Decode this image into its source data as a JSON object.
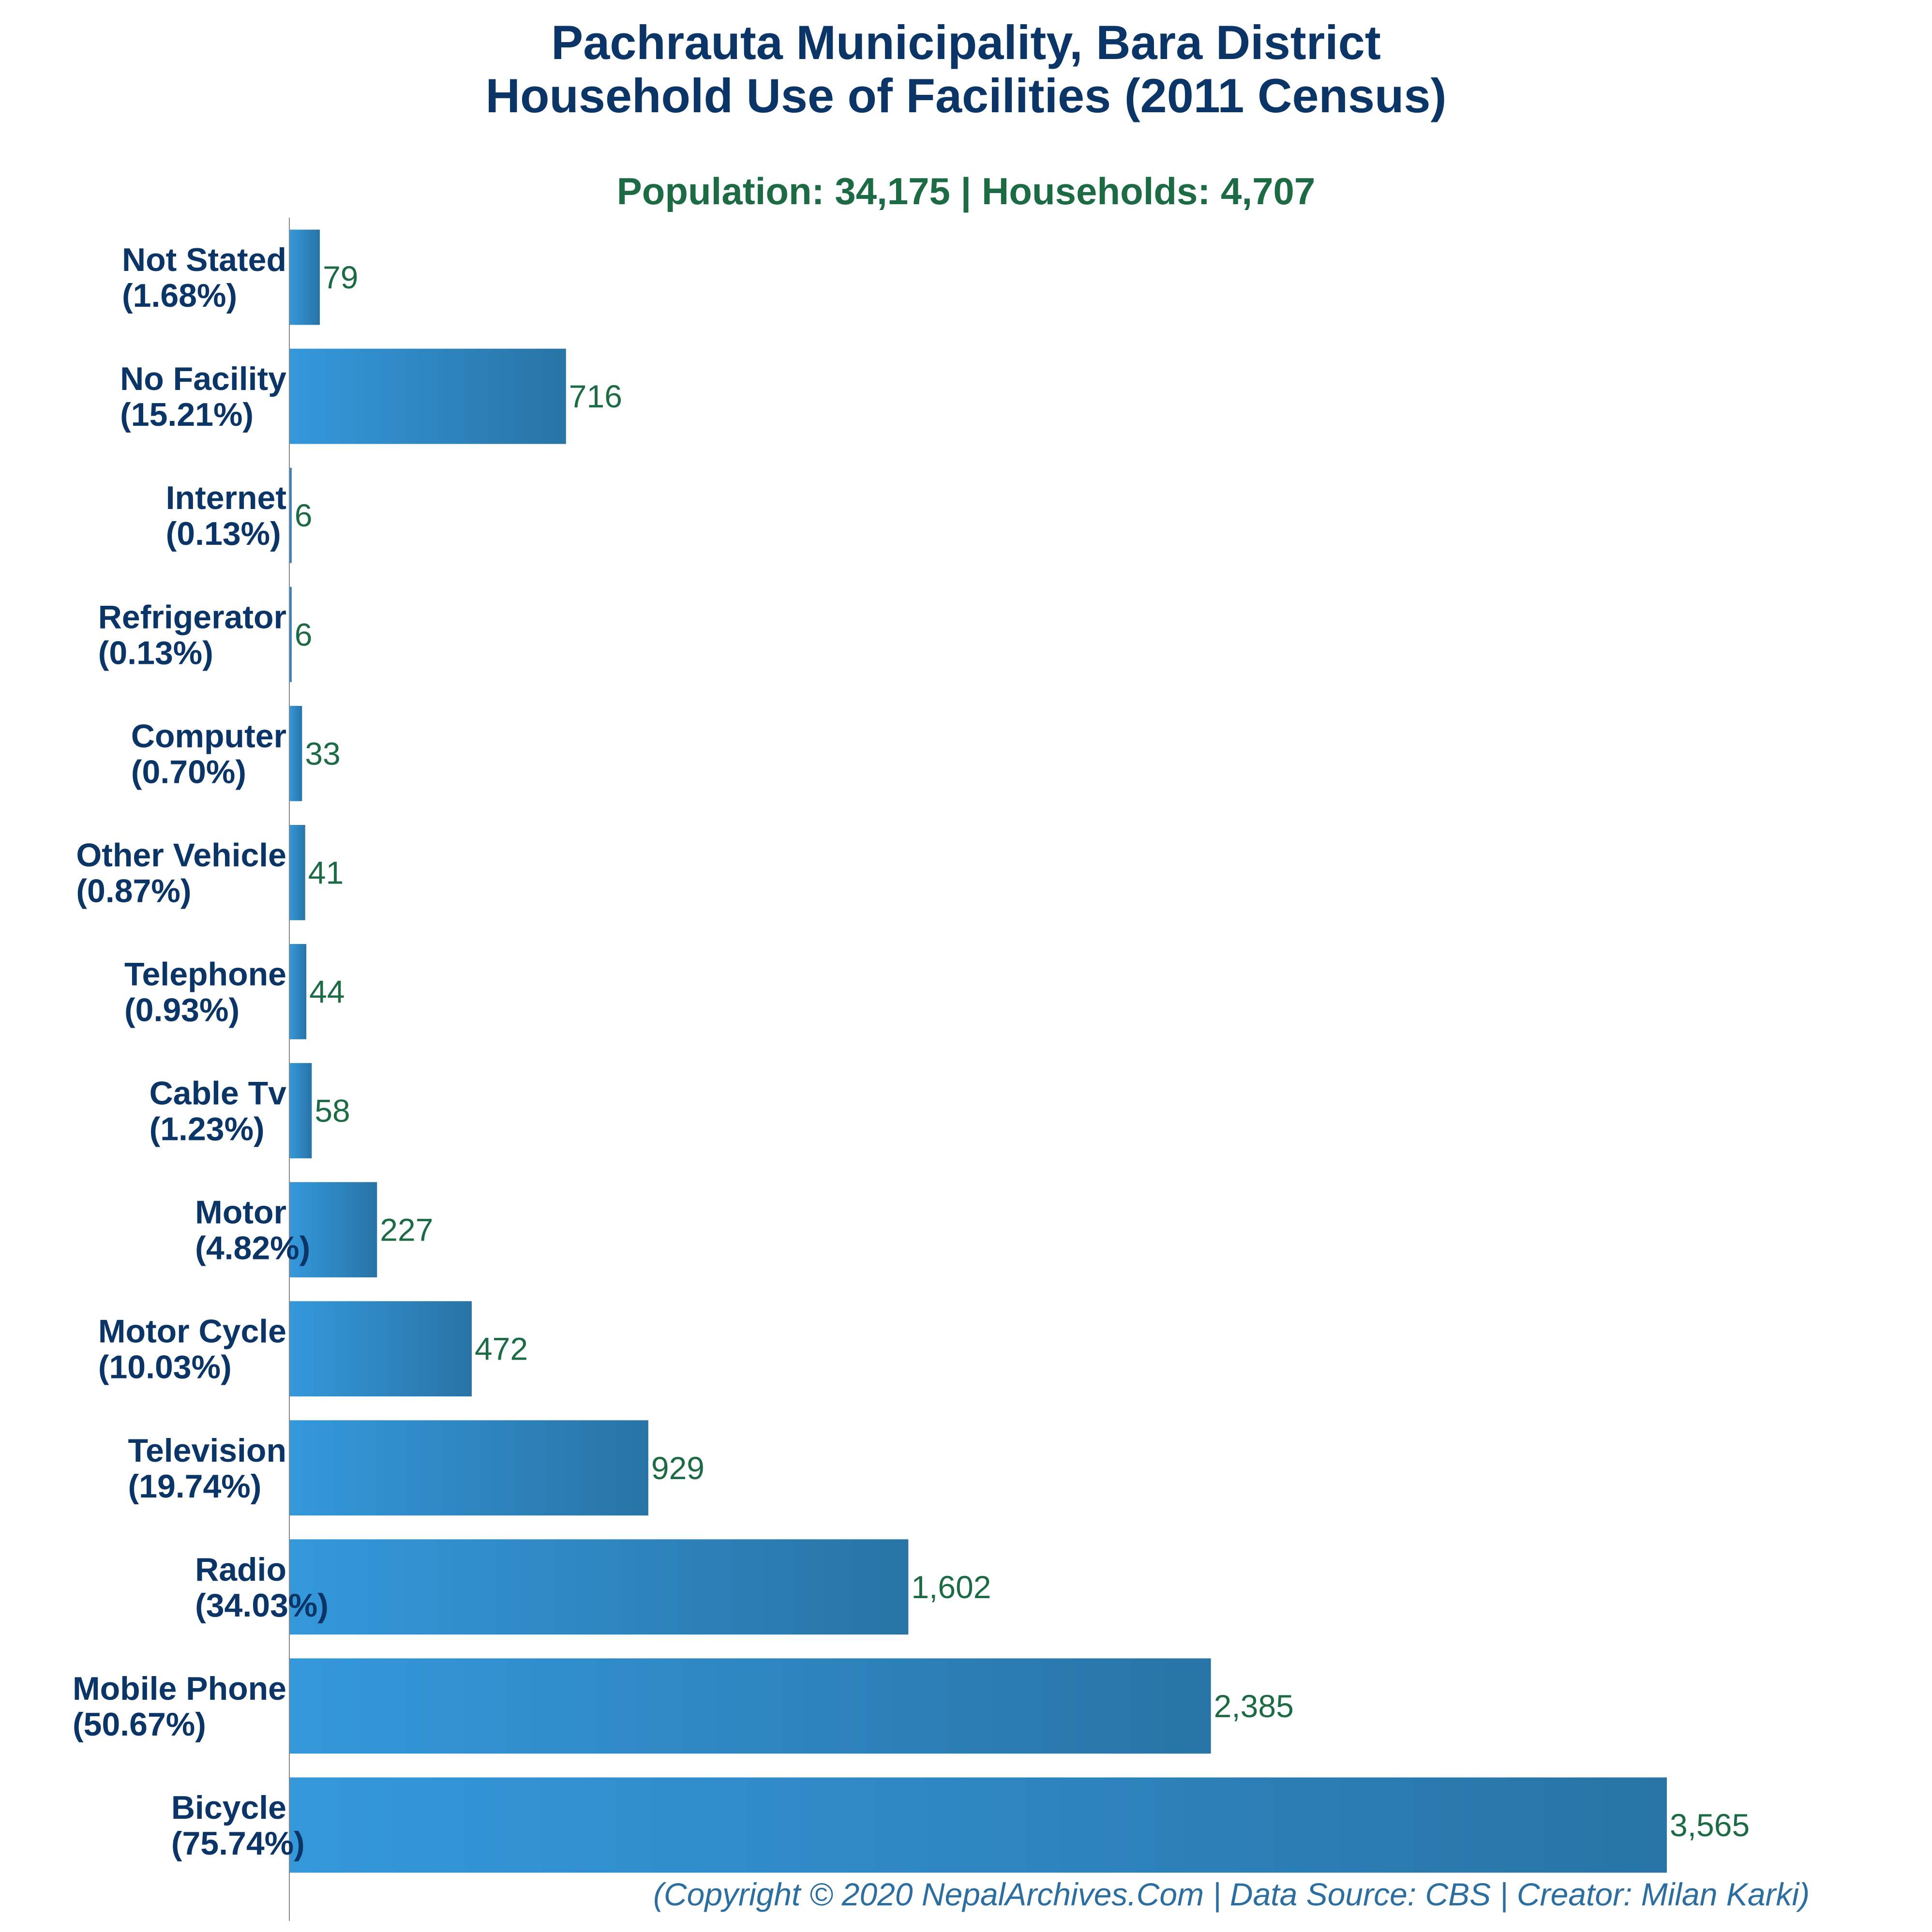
{
  "chart_data": {
    "type": "bar",
    "orientation": "horizontal",
    "title_lines": [
      "Pachrauta Municipality, Bara District",
      "Household Use of Facilities (2011 Census)"
    ],
    "subtitle": "Population: 34,175 | Households: 4,707",
    "categories": [
      "Not Stated",
      "No Facility",
      "Internet",
      "Refrigerator",
      "Computer",
      "Other Vehicle",
      "Telephone",
      "Cable Tv",
      "Motor",
      "Motor Cycle",
      "Television",
      "Radio",
      "Mobile Phone",
      "Bicycle"
    ],
    "percent_labels": [
      "(1.68%)",
      "(15.21%)",
      "(0.13%)",
      "(0.13%)",
      "(0.70%)",
      "(0.87%)",
      "(0.93%)",
      "(1.23%)",
      "(4.82%)",
      "(10.03%)",
      "(19.74%)",
      "(34.03%)",
      "(50.67%)",
      "(75.74%)"
    ],
    "values": [
      79,
      716,
      6,
      6,
      33,
      41,
      44,
      58,
      227,
      472,
      929,
      1602,
      2385,
      3565
    ],
    "value_labels": [
      "79",
      "716",
      "6",
      "6",
      "33",
      "41",
      "44",
      "58",
      "227",
      "472",
      "929",
      "1,602",
      "2,385",
      "3,565"
    ],
    "xlim": [
      0,
      3565
    ],
    "xlabel": "",
    "ylabel": "",
    "grid": false,
    "legend": "none",
    "colors": {
      "bar_gradient_start": "#3498db",
      "bar_gradient_end": "#2874a6",
      "title": "#0b3566",
      "category_label": "#0b3566",
      "subtitle": "#1d6b45",
      "value_label": "#1d6b45",
      "footer": "#2d6ea1",
      "axis_line": "#888888"
    }
  },
  "footer": "(Copyright © 2020 NepalArchives.Com | Data Source: CBS | Creator: Milan Karki)"
}
